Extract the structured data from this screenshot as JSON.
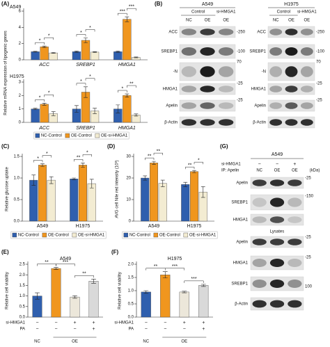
{
  "chart_data": [
    {
      "type": "bar",
      "panel": "(A)",
      "title": "A549",
      "y_label": "Relative mRNA expression of lipogenic genes",
      "category_style": "italic",
      "categories": [
        "ACC",
        "SREBP1",
        "HMGA1"
      ],
      "series": [
        {
          "color": "#2f5fae",
          "values": [
            1,
            1,
            1
          ],
          "errors": [
            0.05,
            0.08,
            0.08
          ]
        },
        {
          "color": "#f0961e",
          "values": [
            1.6,
            2.4,
            5.0
          ],
          "errors": [
            0.1,
            0.3,
            0.3
          ]
        },
        {
          "color": "#f3ecd2",
          "values": [
            0.85,
            0.95,
            0.3
          ],
          "errors": [
            0.05,
            0.06,
            0.05
          ]
        }
      ],
      "ylim": [
        0,
        6
      ],
      "yticks": [
        0,
        2,
        4,
        6
      ],
      "significance": [
        [
          "*",
          "*"
        ],
        [
          "*",
          "*"
        ],
        [
          "***",
          "***"
        ]
      ]
    },
    {
      "type": "bar",
      "title": "H1975",
      "category_style": "italic",
      "legend": true,
      "categories": [
        "ACC",
        "SREBP1",
        "HMGA1"
      ],
      "series": [
        {
          "name": "NC-Control",
          "color": "#2f5fae",
          "values": [
            1,
            1,
            1
          ],
          "errors": [
            0.05,
            0.25,
            0.3
          ]
        },
        {
          "name": "OE-Control",
          "color": "#f0961e",
          "values": [
            1.35,
            2.25,
            2.0
          ],
          "errors": [
            0.08,
            0.4,
            0.12
          ]
        },
        {
          "name": "OE-si-HMGA1",
          "color": "#f3ecd2",
          "values": [
            0.65,
            0.85,
            0.55
          ],
          "errors": [
            0.15,
            0.2,
            0.08
          ]
        }
      ],
      "ylim": [
        0,
        3
      ],
      "yticks": [
        0,
        1,
        2,
        3
      ],
      "significance": [
        [
          "*",
          "*"
        ],
        [
          "*",
          "*"
        ],
        [
          "*",
          "**"
        ]
      ]
    },
    {
      "type": "bar",
      "panel": "(C)",
      "y_label": "Relative glucose uptake",
      "legend": true,
      "categories": [
        "A549",
        "H1975"
      ],
      "series": [
        {
          "name": "NC-Control",
          "color": "#2f5fae",
          "values": [
            0.95,
            0.98
          ],
          "errors": [
            0.12,
            0.02
          ]
        },
        {
          "name": "OE-Control",
          "color": "#f0961e",
          "values": [
            1.3,
            1.3
          ],
          "errors": [
            0.03,
            0.05
          ]
        },
        {
          "name": "OE-si-HMGA1",
          "color": "#f3ecd2",
          "values": [
            0.95,
            0.87
          ],
          "errors": [
            0.08,
            0.1
          ]
        }
      ],
      "ylim": [
        0,
        1.5
      ],
      "yticks": [
        {
          "value": 0,
          "label": "0.0"
        },
        {
          "value": 0.5,
          "label": "0.5"
        },
        {
          "value": 1,
          "label": "1.0"
        },
        {
          "value": 1.5,
          "label": "1.5"
        }
      ],
      "significance": [
        [
          "*",
          "*"
        ],
        [
          "**",
          "*"
        ]
      ]
    },
    {
      "type": "bar",
      "panel": "(D)",
      "y_label": "AVG cell Nile red intensity (10³)",
      "legend": true,
      "categories": [
        "A549",
        "H1975"
      ],
      "series": [
        {
          "name": "NC-Control",
          "color": "#2f5fae",
          "values": [
            20,
            17
          ],
          "errors": [
            1,
            1
          ]
        },
        {
          "name": "OE-Control",
          "color": "#f0961e",
          "values": [
            27,
            23
          ],
          "errors": [
            0.7,
            0.5
          ]
        },
        {
          "name": "OE-si-HMGA1",
          "color": "#f3ecd2",
          "values": [
            17.5,
            13.5
          ],
          "errors": [
            1.5,
            2.5
          ]
        }
      ],
      "ylim": [
        0,
        30
      ],
      "yticks": [
        0,
        10,
        20,
        30
      ],
      "significance": [
        [
          "**",
          "**"
        ],
        [
          "**",
          "*"
        ]
      ]
    },
    {
      "type": "bar",
      "panel": "(E)",
      "title": "A549",
      "y_label": "Relative cell viability",
      "values": [
        1.0,
        2.3,
        0.95,
        1.7
      ],
      "errors": [
        0.15,
        0.05,
        0.06,
        0.1
      ],
      "colors": [
        "#2f5fae",
        "#f0961e",
        "#ece7da",
        "#d9d9d9"
      ],
      "ylim": [
        0,
        2.5
      ],
      "yticks": [
        {
          "value": 0,
          "label": "0.0"
        },
        {
          "value": 0.5,
          "label": "0.5"
        },
        {
          "value": 1,
          "label": "1.0"
        },
        {
          "value": 1.5,
          "label": "1.5"
        },
        {
          "value": 2,
          "label": "2.0"
        },
        {
          "value": 2.5,
          "label": "2.5"
        }
      ],
      "significance": [
        "**",
        "***",
        "**"
      ],
      "conditions": [
        {
          "label": "si-HMGA1",
          "marks": [
            "−",
            "−",
            "+",
            "+"
          ]
        },
        {
          "label": "PA",
          "marks": [
            "−",
            "−",
            "−",
            "+"
          ]
        }
      ],
      "groups": [
        "NC",
        "OE"
      ]
    },
    {
      "type": "bar",
      "panel": "(F)",
      "title": "H1975",
      "y_label": "Relative cell viability",
      "values": [
        0.95,
        1.6,
        0.95,
        1.2
      ],
      "errors": [
        0.05,
        0.12,
        0.03,
        0.04
      ],
      "colors": [
        "#2f5fae",
        "#f0961e",
        "#ece7da",
        "#d9d9d9"
      ],
      "ylim": [
        0,
        2.0
      ],
      "yticks": [
        {
          "value": 0,
          "label": "0.0"
        },
        {
          "value": 0.5,
          "label": "0.5"
        },
        {
          "value": 1,
          "label": "1.0"
        },
        {
          "value": 1.5,
          "label": "1.5"
        },
        {
          "value": 2,
          "label": "2.0"
        }
      ],
      "significance": [
        "**",
        "***",
        "***"
      ],
      "conditions": [
        {
          "label": "si-HMGA1",
          "marks": [
            "−",
            "−",
            "+",
            "+"
          ]
        },
        {
          "label": "PA",
          "marks": [
            "−",
            "−",
            "−",
            "+"
          ]
        }
      ],
      "groups": [
        "NC",
        "OE"
      ]
    }
  ],
  "blot_b": {
    "panel": "(B)",
    "cell_lines": [
      {
        "name": "A549",
        "group_labels": [
          "Control",
          "si-HMGA1"
        ],
        "columns": [
          "NC",
          "OE",
          "OE"
        ],
        "rows": [
          "ACC",
          "SREBP1",
          "-N",
          "HMGA1",
          "Apelin",
          "β-Actin"
        ],
        "markers": [
          "-250",
          "-100",
          "70",
          "-25",
          "-25"
        ]
      },
      {
        "name": "H1975",
        "group_labels": [
          "Control",
          "si-HMGA1"
        ],
        "columns": [
          "NC",
          "OE",
          "OE"
        ],
        "rows": [
          "ACC",
          "SREBP1",
          "-N",
          "HMGA1",
          "Apelin",
          "β-Actin"
        ],
        "markers": [
          "-250",
          "-100",
          "70",
          "-25",
          "-25"
        ]
      }
    ]
  },
  "blot_g": {
    "panel": "(G)",
    "title": "A549",
    "treatment": {
      "label": "si-HMGA1",
      "marks": [
        "−",
        "−",
        "+"
      ]
    },
    "ip_label": "IP: Apelin",
    "columns": [
      "NC",
      "OE",
      "OE"
    ],
    "unit": "(kDa)",
    "ip_rows": [
      "Apelin",
      "SREBP1",
      "HMGA1"
    ],
    "ip_markers": [
      "-25",
      "-150"
    ],
    "lysate_label": "Lysates",
    "lysate_rows": [
      "Apelin",
      "HMGA1",
      "SREBP1",
      "β-Actin"
    ],
    "lysate_markers": [
      "-25",
      "-25",
      "100"
    ]
  }
}
